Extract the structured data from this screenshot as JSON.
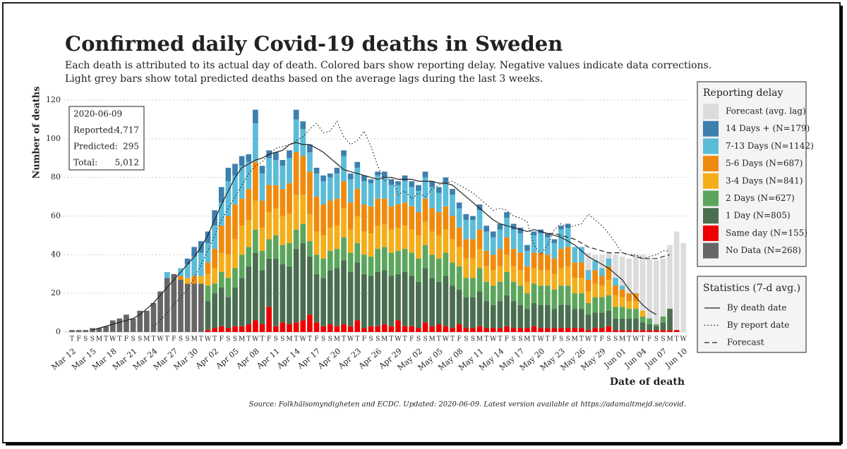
{
  "chart_data": {
    "type": "stacked_bar",
    "title": "Confirmed daily Covid-19 deaths in Sweden",
    "subtitle_lines": [
      "Each death is attributed to its actual day of death. Colored bars show reporting delay. Negative values indicate data corrections.",
      "Light grey bars show total predicted deaths based on the average lags during the last 3 weeks."
    ],
    "y_label": "Number of deaths",
    "x_label": "Date of death",
    "source": "Source: Folkhälsomyndigheten and ECDC. Updated: 2020-06-09. Latest version available at https://adamaltmejd.se/covid.",
    "ylim": [
      0,
      120
    ],
    "yticks": [
      0,
      20,
      40,
      60,
      80,
      100,
      120
    ],
    "grid": true,
    "categories": [
      "Mar 12",
      null,
      null,
      "Mar 15",
      null,
      null,
      "Mar 18",
      null,
      null,
      "Mar 21",
      null,
      null,
      "Mar 24",
      null,
      null,
      "Mar 27",
      null,
      null,
      "Mar 30",
      null,
      null,
      "Apr 02",
      null,
      null,
      "Apr 05",
      null,
      null,
      "Apr 08",
      null,
      null,
      "Apr 11",
      null,
      null,
      "Apr 14",
      null,
      null,
      "Apr 17",
      null,
      null,
      "Apr 20",
      null,
      null,
      "Apr 23",
      null,
      null,
      "Apr 26",
      null,
      null,
      "Apr 29",
      null,
      null,
      "May 02",
      null,
      null,
      "May 05",
      null,
      null,
      "May 08",
      null,
      null,
      "May 11",
      null,
      null,
      "May 14",
      null,
      null,
      "May 17",
      null,
      null,
      "May 20",
      null,
      null,
      "May 23",
      null,
      null,
      "May 26",
      null,
      null,
      "May 29",
      null,
      null,
      "Jun 01",
      null,
      null,
      "Jun 04",
      null,
      null,
      "Jun 07",
      null,
      null,
      "Jun 10"
    ],
    "weekdays": [
      "T",
      "F",
      "S",
      "S",
      "M",
      "T",
      "W",
      "T",
      "F",
      "S",
      "S",
      "M",
      "T",
      "W",
      "T",
      "F",
      "S",
      "S",
      "M",
      "T",
      "W",
      "T",
      "F",
      "S",
      "S",
      "M",
      "T",
      "W",
      "T",
      "F",
      "S",
      "S",
      "M",
      "T",
      "W",
      "T",
      "F",
      "S",
      "S",
      "M",
      "T",
      "W",
      "T",
      "F",
      "S",
      "S",
      "M",
      "T",
      "W",
      "T",
      "F",
      "S",
      "S",
      "M",
      "T",
      "W",
      "T",
      "F",
      "S",
      "S",
      "M",
      "T",
      "W",
      "T",
      "F",
      "S",
      "S",
      "M",
      "T",
      "W",
      "T",
      "F",
      "S",
      "S",
      "M",
      "T",
      "W",
      "T",
      "F",
      "S",
      "S",
      "M",
      "T",
      "W",
      "T",
      "F",
      "S",
      "S",
      "M",
      "T",
      "W"
    ],
    "legend_title": "Reporting delay",
    "forecast_bars": {
      "name": "Forecast (avg. lag)",
      "color": "#dcdcdc",
      "values": [
        null,
        null,
        null,
        null,
        null,
        null,
        null,
        null,
        null,
        null,
        null,
        null,
        null,
        null,
        null,
        null,
        null,
        null,
        null,
        null,
        null,
        null,
        null,
        null,
        null,
        null,
        null,
        null,
        null,
        null,
        null,
        null,
        null,
        null,
        null,
        null,
        null,
        null,
        null,
        null,
        null,
        null,
        null,
        null,
        null,
        null,
        null,
        null,
        null,
        null,
        null,
        null,
        null,
        null,
        null,
        null,
        null,
        null,
        null,
        null,
        null,
        null,
        null,
        null,
        null,
        null,
        null,
        null,
        null,
        null,
        null,
        null,
        null,
        null,
        null,
        44,
        41,
        40,
        40,
        41,
        40,
        39,
        38,
        40,
        40,
        38,
        37,
        38,
        45,
        52,
        46
      ]
    },
    "series": [
      {
        "name": "14 Days + (N=179)",
        "color": "#3d7fae",
        "values": [
          0,
          0,
          0,
          0,
          0,
          0,
          0,
          0,
          0,
          0,
          0,
          0,
          0,
          0,
          0,
          0,
          0,
          3,
          5,
          6,
          6,
          8,
          8,
          7,
          6,
          5,
          4,
          7,
          4,
          4,
          4,
          3,
          4,
          5,
          4,
          4,
          3,
          3,
          2,
          3,
          3,
          3,
          3,
          3,
          2,
          2,
          3,
          3,
          2,
          3,
          3,
          3,
          3,
          3,
          3,
          3,
          3,
          3,
          3,
          2,
          3,
          3,
          3,
          3,
          3,
          3,
          3,
          3,
          2,
          2,
          2,
          2,
          2,
          2,
          0,
          0,
          0,
          0,
          0,
          0,
          0,
          0,
          0,
          0,
          0,
          0,
          0,
          0,
          0,
          0,
          0
        ]
      },
      {
        "name": "7-13 Days (N=1142)",
        "color": "#5bbcd8",
        "values": [
          0,
          0,
          0,
          0,
          0,
          0,
          0,
          0,
          0,
          0,
          0,
          0,
          0,
          0,
          3,
          0,
          4,
          7,
          10,
          12,
          10,
          12,
          12,
          18,
          15,
          17,
          14,
          20,
          14,
          14,
          13,
          12,
          13,
          17,
          14,
          10,
          12,
          12,
          12,
          13,
          13,
          12,
          11,
          12,
          12,
          12,
          11,
          11,
          10,
          11,
          10,
          11,
          11,
          11,
          10,
          12,
          11,
          10,
          10,
          10,
          10,
          10,
          9,
          10,
          10,
          10,
          10,
          8,
          9,
          10,
          9,
          8,
          10,
          10,
          8,
          8,
          5,
          5,
          4,
          4,
          4,
          2,
          0,
          0,
          0,
          0,
          0,
          0,
          0,
          0,
          0
        ]
      },
      {
        "name": "5-6 Days (N=687)",
        "color": "#f08a0c",
        "values": [
          0,
          0,
          0,
          0,
          0,
          0,
          0,
          0,
          0,
          0,
          0,
          0,
          0,
          0,
          0,
          0,
          2,
          0,
          4,
          0,
          6,
          10,
          14,
          20,
          18,
          14,
          16,
          20,
          14,
          14,
          12,
          14,
          16,
          22,
          20,
          22,
          18,
          16,
          14,
          14,
          14,
          14,
          14,
          14,
          14,
          14,
          13,
          12,
          12,
          12,
          12,
          12,
          12,
          12,
          12,
          12,
          12,
          10,
          10,
          10,
          10,
          8,
          8,
          9,
          9,
          9,
          9,
          8,
          8,
          9,
          8,
          8,
          10,
          10,
          8,
          8,
          6,
          7,
          5,
          7,
          5,
          4,
          4,
          4,
          0,
          0,
          0,
          0,
          0,
          0,
          0
        ]
      },
      {
        "name": "3-4 Days (N=841)",
        "color": "#f4ae1a",
        "values": [
          0,
          0,
          0,
          0,
          0,
          0,
          0,
          0,
          0,
          0,
          0,
          0,
          0,
          0,
          0,
          0,
          0,
          3,
          0,
          4,
          6,
          8,
          10,
          12,
          15,
          15,
          14,
          15,
          12,
          14,
          14,
          15,
          15,
          18,
          15,
          14,
          12,
          12,
          12,
          12,
          15,
          12,
          14,
          12,
          12,
          12,
          12,
          12,
          12,
          12,
          12,
          12,
          12,
          12,
          12,
          12,
          12,
          10,
          10,
          10,
          10,
          8,
          8,
          8,
          9,
          8,
          8,
          6,
          8,
          8,
          8,
          8,
          9,
          10,
          8,
          8,
          6,
          7,
          6,
          8,
          6,
          5,
          4,
          4,
          3,
          0,
          0,
          0,
          0,
          0,
          0
        ]
      },
      {
        "name": "2 Days (N=627)",
        "color": "#5ba65c",
        "values": [
          0,
          0,
          0,
          0,
          0,
          0,
          0,
          0,
          0,
          0,
          0,
          0,
          0,
          0,
          0,
          0,
          0,
          0,
          0,
          0,
          8,
          5,
          8,
          10,
          10,
          12,
          10,
          12,
          10,
          10,
          12,
          10,
          12,
          10,
          10,
          8,
          10,
          10,
          10,
          10,
          12,
          10,
          10,
          10,
          10,
          12,
          12,
          12,
          12,
          12,
          12,
          12,
          12,
          12,
          12,
          12,
          12,
          12,
          10,
          10,
          12,
          10,
          10,
          10,
          12,
          10,
          10,
          8,
          10,
          10,
          10,
          10,
          10,
          10,
          8,
          8,
          6,
          8,
          8,
          8,
          6,
          6,
          5,
          5,
          3,
          3,
          1,
          3,
          0,
          0,
          0
        ]
      },
      {
        "name": "1 Day (N=805)",
        "color": "#4a6e50",
        "values": [
          0,
          0,
          0,
          0,
          0,
          0,
          0,
          0,
          0,
          0,
          0,
          0,
          0,
          0,
          0,
          0,
          0,
          0,
          0,
          0,
          15,
          18,
          20,
          16,
          20,
          25,
          30,
          35,
          28,
          25,
          35,
          30,
          30,
          38,
          40,
          30,
          25,
          25,
          28,
          30,
          33,
          28,
          30,
          28,
          26,
          28,
          28,
          26,
          24,
          28,
          26,
          24,
          28,
          25,
          22,
          26,
          22,
          18,
          16,
          16,
          18,
          14,
          12,
          14,
          16,
          14,
          12,
          10,
          12,
          12,
          12,
          10,
          12,
          12,
          10,
          10,
          8,
          8,
          8,
          8,
          6,
          6,
          6,
          6,
          4,
          3,
          2,
          4,
          11,
          0,
          0
        ]
      },
      {
        "name": "Same day (N=155)",
        "color": "#ee0000",
        "values": [
          0,
          0,
          0,
          0,
          0,
          0,
          0,
          0,
          0,
          0,
          0,
          0,
          0,
          0,
          0,
          0,
          0,
          0,
          0,
          0,
          1,
          2,
          3,
          2,
          3,
          3,
          4,
          6,
          4,
          13,
          3,
          5,
          4,
          5,
          6,
          9,
          5,
          3,
          4,
          3,
          4,
          3,
          6,
          2,
          3,
          3,
          4,
          3,
          6,
          3,
          3,
          2,
          5,
          3,
          4,
          3,
          2,
          4,
          2,
          2,
          3,
          2,
          2,
          2,
          3,
          2,
          2,
          2,
          3,
          2,
          2,
          2,
          2,
          2,
          2,
          2,
          1,
          2,
          2,
          3,
          1,
          1,
          1,
          1,
          1,
          1,
          1,
          1,
          1,
          1,
          0
        ]
      },
      {
        "name": "No Data (N=268)",
        "color": "#666666",
        "values": [
          1,
          1,
          1,
          2,
          2,
          3,
          6,
          7,
          9,
          7,
          11,
          11,
          15,
          21,
          28,
          30,
          27,
          25,
          25,
          25,
          0,
          0,
          0,
          0,
          0,
          0,
          0,
          0,
          0,
          0,
          0,
          0,
          0,
          0,
          0,
          0,
          0,
          0,
          0,
          0,
          0,
          0,
          0,
          0,
          0,
          0,
          0,
          0,
          0,
          0,
          0,
          0,
          0,
          0,
          0,
          0,
          0,
          0,
          0,
          0,
          0,
          0,
          0,
          0,
          0,
          0,
          0,
          0,
          0,
          0,
          0,
          0,
          0,
          0,
          0,
          0,
          0,
          0,
          0,
          0,
          0,
          0,
          0,
          0,
          0,
          0,
          0,
          0,
          0,
          0,
          0
        ]
      }
    ],
    "lines_title": "Statistics (7-d avg.)",
    "lines": [
      {
        "name": "By death date",
        "color": "#222222",
        "dash": "solid",
        "values": [
          null,
          null,
          null,
          1,
          2,
          3,
          4,
          5,
          6,
          7,
          9,
          12,
          15,
          19,
          23,
          27,
          31,
          35,
          39,
          44,
          50,
          58,
          66,
          73,
          80,
          85,
          87,
          89,
          90,
          92,
          93,
          94,
          97,
          98,
          97,
          97,
          95,
          93,
          90,
          87,
          84,
          83,
          82,
          81,
          80,
          79,
          80,
          80,
          79,
          79,
          79,
          78,
          78,
          78,
          77,
          77,
          76,
          73,
          70,
          67,
          64,
          61,
          58,
          56,
          55,
          54,
          53,
          52,
          53,
          52,
          51,
          50,
          49,
          47,
          45,
          42,
          39,
          37,
          35,
          33,
          30,
          27,
          22,
          18,
          14,
          11,
          9,
          null,
          null,
          null,
          null
        ]
      },
      {
        "name": "By report date",
        "color": "#222222",
        "dash": "dotted",
        "values": [
          null,
          null,
          null,
          null,
          null,
          null,
          null,
          null,
          null,
          null,
          null,
          null,
          3,
          6,
          10,
          14,
          18,
          22,
          28,
          35,
          42,
          50,
          58,
          64,
          70,
          76,
          82,
          86,
          88,
          92,
          95,
          96,
          97,
          99,
          101,
          105,
          108,
          103,
          104,
          109,
          101,
          97,
          99,
          104,
          96,
          86,
          78,
          80,
          71,
          73,
          69,
          72,
          70,
          74,
          76,
          77,
          78,
          76,
          74,
          72,
          69,
          66,
          63,
          64,
          63,
          60,
          59,
          57,
          45,
          40,
          45,
          53,
          56,
          54,
          55,
          56,
          61,
          58,
          55,
          51,
          46,
          41,
          40,
          40,
          38,
          39,
          40,
          42,
          42,
          null,
          null
        ]
      },
      {
        "name": "Forecast",
        "color": "#222222",
        "dash": "dashed",
        "values": [
          null,
          null,
          null,
          null,
          null,
          null,
          null,
          null,
          null,
          null,
          null,
          null,
          null,
          null,
          null,
          null,
          null,
          null,
          null,
          null,
          null,
          null,
          null,
          null,
          null,
          null,
          null,
          null,
          null,
          null,
          null,
          null,
          null,
          null,
          null,
          null,
          null,
          null,
          null,
          null,
          null,
          null,
          null,
          null,
          null,
          null,
          null,
          null,
          null,
          null,
          null,
          null,
          null,
          null,
          null,
          null,
          null,
          null,
          null,
          null,
          null,
          null,
          null,
          null,
          null,
          null,
          null,
          null,
          null,
          52,
          51,
          51,
          50,
          49,
          48,
          46,
          44,
          43,
          42,
          41,
          41,
          41,
          40,
          39,
          38,
          38,
          38,
          39,
          40,
          null,
          null
        ]
      }
    ],
    "annotation": {
      "date": "2020-06-09",
      "rows": [
        [
          "Reported:",
          "4,717"
        ],
        [
          "Predicted:",
          "295"
        ],
        [
          "Total:",
          "5,012"
        ]
      ]
    }
  }
}
